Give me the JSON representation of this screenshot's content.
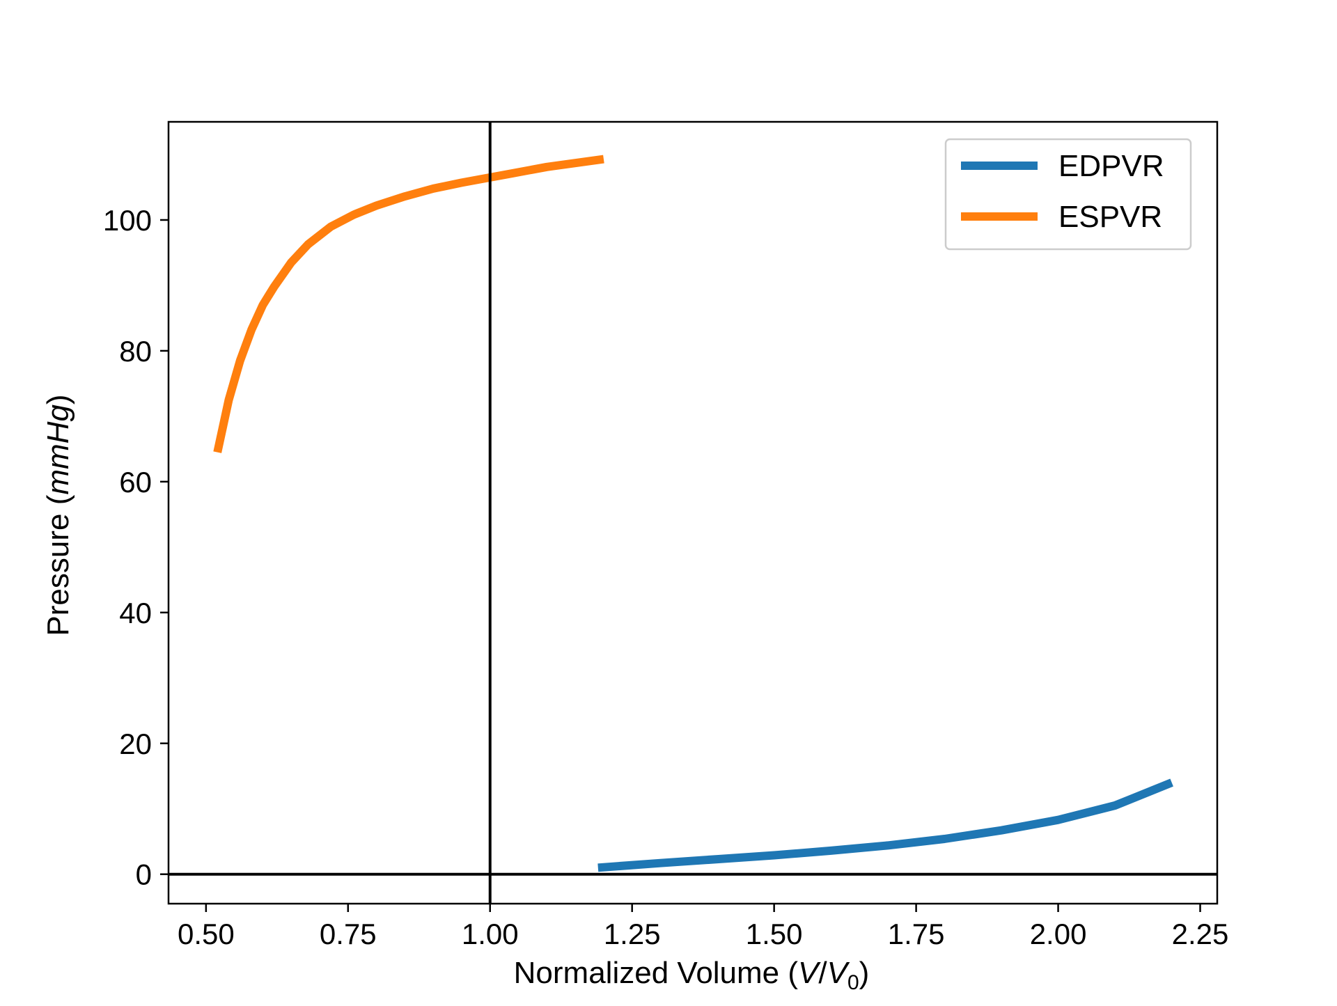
{
  "chart_data": {
    "type": "line",
    "title": "",
    "xlabel": {
      "prefix": "Normalized Volume (",
      "italic_a": "V",
      "slash": "/",
      "italic_b": "V",
      "subscript": "0",
      "suffix": ")"
    },
    "ylabel": {
      "prefix": "Pressure (",
      "italic": "mmHg",
      "suffix": ")"
    },
    "xlim": [
      0.434,
      2.28
    ],
    "ylim": [
      -4.5,
      115
    ],
    "xticks": [
      0.5,
      0.75,
      1.0,
      1.25,
      1.5,
      1.75,
      2.0,
      2.25
    ],
    "xtick_labels": [
      "0.50",
      "0.75",
      "1.00",
      "1.25",
      "1.50",
      "1.75",
      "2.00",
      "2.25"
    ],
    "yticks": [
      0,
      20,
      40,
      60,
      80,
      100
    ],
    "ytick_labels": [
      "0",
      "20",
      "40",
      "60",
      "80",
      "100"
    ],
    "grid": false,
    "legend_position": "top-right",
    "reference_lines": {
      "vertical_x": 1.0,
      "horizontal_y": 0
    },
    "series": [
      {
        "name": "EDPVR",
        "color": "#1f77b4",
        "x": [
          1.19,
          1.3,
          1.4,
          1.5,
          1.6,
          1.7,
          1.8,
          1.9,
          2.0,
          2.1,
          2.2
        ],
        "y": [
          1.0,
          1.7,
          2.3,
          2.9,
          3.6,
          4.4,
          5.4,
          6.7,
          8.3,
          10.5,
          14.0
        ]
      },
      {
        "name": "ESPVR",
        "color": "#ff7f0e",
        "x": [
          0.52,
          0.54,
          0.56,
          0.58,
          0.6,
          0.62,
          0.65,
          0.68,
          0.72,
          0.76,
          0.8,
          0.85,
          0.9,
          0.95,
          1.0,
          1.05,
          1.1,
          1.15,
          1.2
        ],
        "y": [
          64.5,
          72.5,
          78.5,
          83.2,
          87.0,
          89.8,
          93.5,
          96.3,
          99.0,
          100.8,
          102.2,
          103.6,
          104.8,
          105.7,
          106.5,
          107.3,
          108.1,
          108.7,
          109.3
        ]
      }
    ]
  }
}
